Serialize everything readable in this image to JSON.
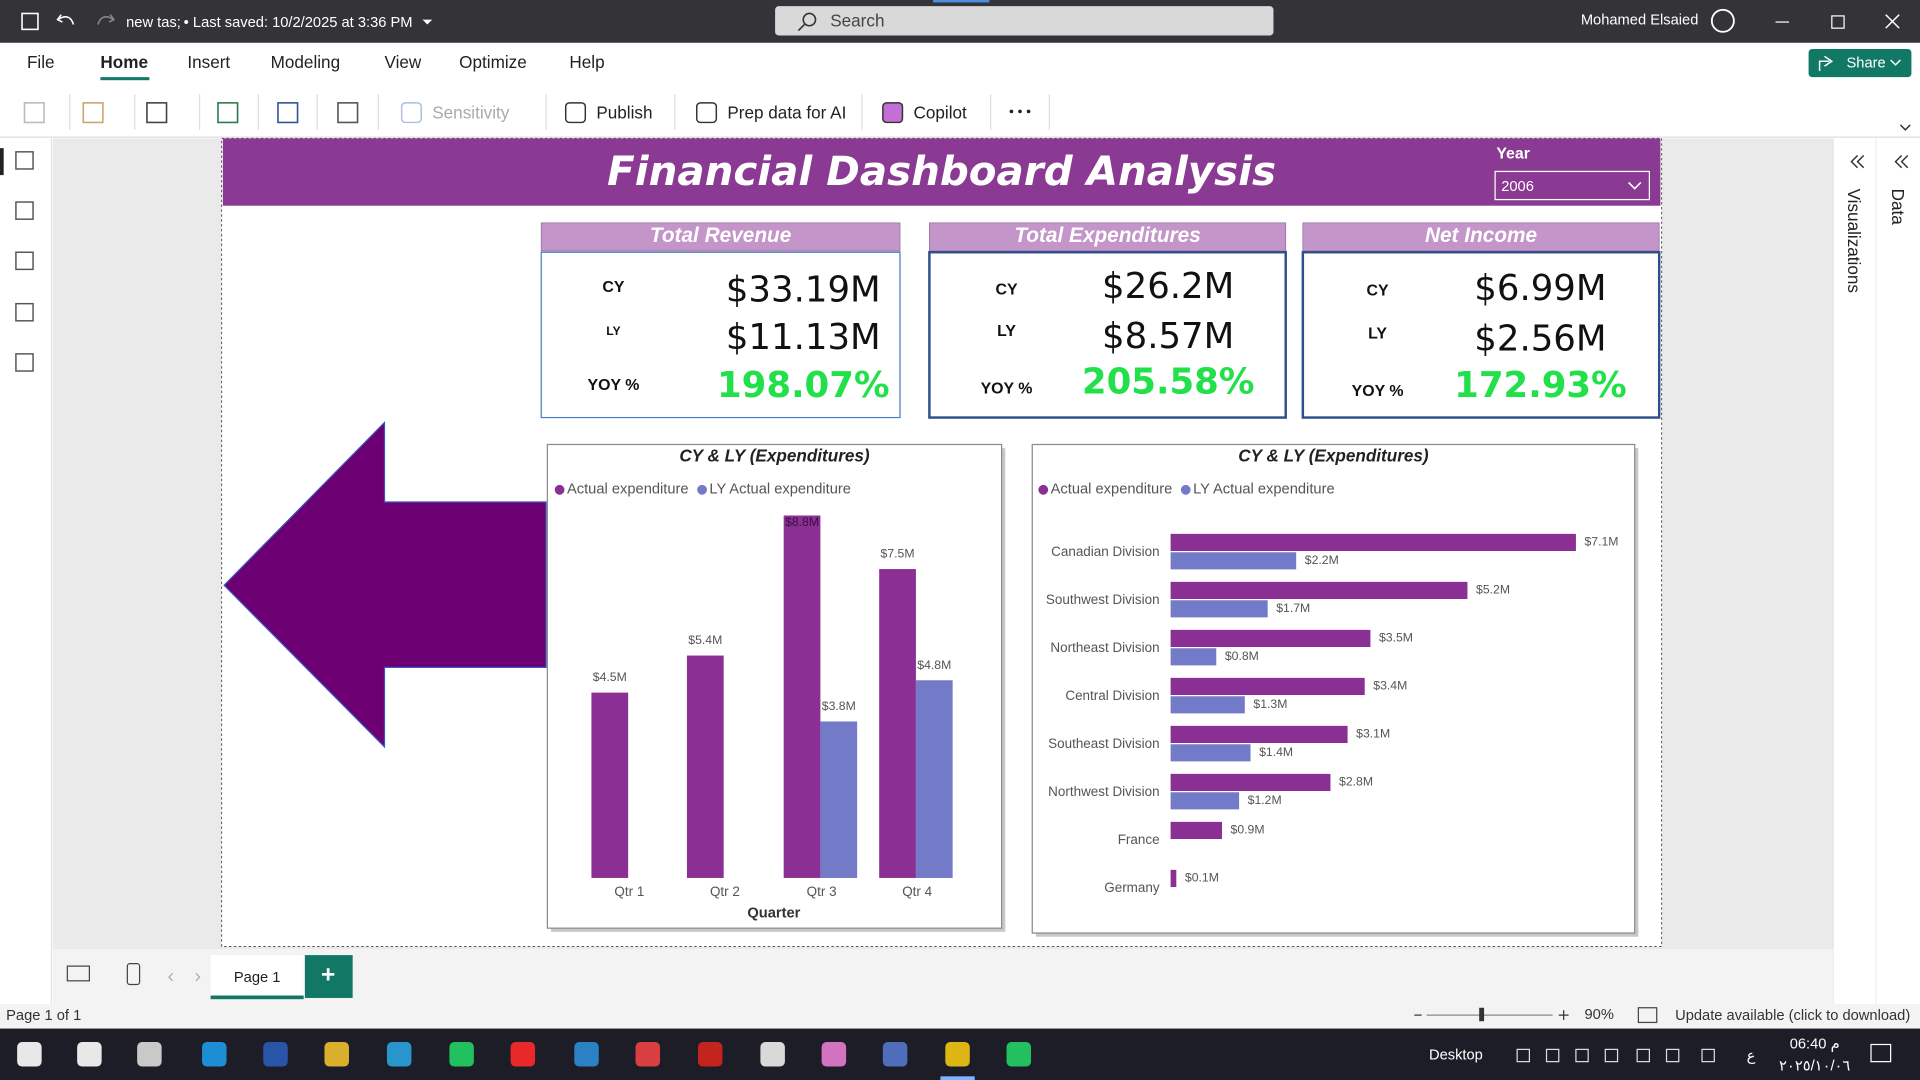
{
  "titlebar": {
    "file_name": "new tas;",
    "saved": "• Last saved: 10/2/2025 at 3:36 PM",
    "search": "Search",
    "user": "Mohamed Elsaied"
  },
  "menu": {
    "items": [
      "File",
      "Home",
      "Insert",
      "Modeling",
      "View",
      "Optimize",
      "Help"
    ],
    "share": "Share"
  },
  "toolbar": {
    "items": [
      "Sensitivity",
      "Publish",
      "Prep data for AI",
      "Copilot"
    ]
  },
  "panes": [
    "Visualizations",
    "Data"
  ],
  "dashboard": {
    "title": "Financial Dashboard Analysis",
    "year_label": "Year",
    "year_value": "2006",
    "kpis": [
      {
        "title": "Total Revenue",
        "rows": [
          [
            "CY",
            "$33.19M"
          ],
          [
            "LY",
            "$11.13M"
          ],
          [
            "YOY %",
            "198.07%"
          ]
        ]
      },
      {
        "title": "Total Expenditures",
        "rows": [
          [
            "CY",
            "$26.2M"
          ],
          [
            "LY",
            "$8.57M"
          ],
          [
            "YOY %",
            "205.58%"
          ]
        ]
      },
      {
        "title": "Net Income",
        "rows": [
          [
            "CY",
            "$6.99M"
          ],
          [
            "LY",
            "$2.56M"
          ],
          [
            "YOY %",
            "172.93%"
          ]
        ]
      }
    ]
  },
  "chart_data": [
    {
      "type": "bar",
      "title": "CY & LY (Expenditures)",
      "x_label": "Quarter",
      "categories": [
        "Qtr 1",
        "Qtr 2",
        "Qtr 3",
        "Qtr 4"
      ],
      "series": [
        {
          "name": "Actual expenditure",
          "color": "#8a2f94",
          "values": [
            4.5,
            5.4,
            8.8,
            7.5
          ],
          "value_labels": [
            "$4.5M",
            "$5.4M",
            "$8.8M",
            "$7.5M"
          ]
        },
        {
          "name": "LY Actual expenditure",
          "color": "#737bc9",
          "values": [
            null,
            null,
            3.8,
            4.8
          ],
          "value_labels": [
            null,
            null,
            "$3.8M",
            "$4.8M"
          ]
        }
      ]
    },
    {
      "type": "barh",
      "title": "CY & LY (Expenditures)",
      "categories": [
        "Canadian Division",
        "Southwest Division",
        "Northeast Division",
        "Central Division",
        "Southeast Division",
        "Northwest Division",
        "France",
        "Germany"
      ],
      "series": [
        {
          "name": "Actual expenditure",
          "color": "#8a2f94",
          "values": [
            7.1,
            5.2,
            3.5,
            3.4,
            3.1,
            2.8,
            0.9,
            0.1
          ],
          "value_labels": [
            "$7.1M",
            "$5.2M",
            "$3.5M",
            "$3.4M",
            "$3.1M",
            "$2.8M",
            "$0.9M",
            "$0.1M"
          ]
        },
        {
          "name": "LY Actual expenditure",
          "color": "#737bc9",
          "values": [
            2.2,
            1.7,
            0.8,
            1.3,
            1.4,
            1.2,
            null,
            null
          ],
          "value_labels": [
            "$2.2M",
            "$1.7M",
            "$0.8M",
            "$1.3M",
            "$1.4M",
            "$1.2M",
            null,
            null
          ]
        }
      ]
    }
  ],
  "pages": {
    "tab": "Page 1",
    "add": "+"
  },
  "statusbar": {
    "page": "Page 1 of 1",
    "zoom": "90%",
    "update": "Update available (click to download)"
  },
  "taskbar": {
    "desktop": "Desktop",
    "time": "06:40 م",
    "date": "٢٠٢٥/١٠/٠٦",
    "lang": "ع"
  }
}
